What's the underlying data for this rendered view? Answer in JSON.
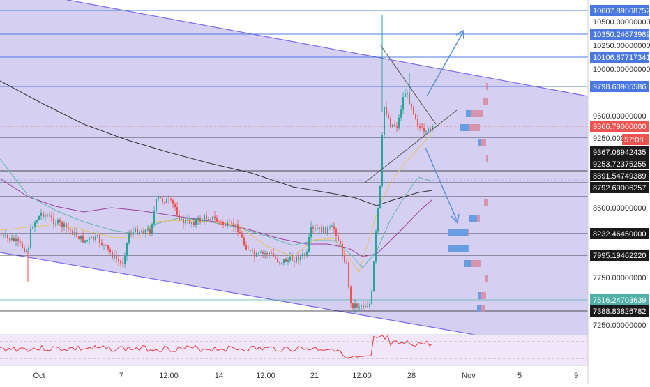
{
  "chart_data": {
    "type": "candlestick",
    "title": "",
    "xlabel": "",
    "ylabel": "",
    "ylim": [
      7100,
      10700
    ],
    "x_ticks": [
      "Oct",
      "7",
      "12:00",
      "14",
      "12:00",
      "21",
      "12:00",
      "28",
      "Nov",
      "5",
      "9"
    ],
    "y_ticks": [
      "10500.00000000",
      "10250.00000000",
      "10000.00000000",
      "9500.00000000",
      "9250.00000000",
      "8500.00000000",
      "7750.00000000",
      "7250.00000000"
    ],
    "price_levels": [
      {
        "label": "10607.89568752",
        "value": 10607.9,
        "kind": "blue"
      },
      {
        "label": "10350.24673989",
        "value": 10350.2,
        "kind": "blue"
      },
      {
        "label": "10106.87717341",
        "value": 10106.9,
        "kind": "blue"
      },
      {
        "label": "9798.60905586",
        "value": 9798.6,
        "kind": "blue"
      },
      {
        "label": "9367.08942435",
        "value": 9200.0,
        "kind": "dark"
      },
      {
        "label": "9253.72375255",
        "value": 8980.0,
        "kind": "dark"
      },
      {
        "label": "8891.54749389",
        "value": 8880.0,
        "kind": "dark"
      },
      {
        "label": "8792.69006257",
        "value": 8792.7,
        "kind": "dark"
      },
      {
        "label": "8232.46450000",
        "value": 8232.5,
        "kind": "dark"
      },
      {
        "label": "7995.19462220",
        "value": 7995.2,
        "kind": "dark"
      },
      {
        "label": "7516.24703639",
        "value": 7516.2,
        "kind": "teal"
      },
      {
        "label": "7388.83826782",
        "value": 7388.8,
        "kind": "dark"
      }
    ],
    "current_price": {
      "label": "9366.79000000",
      "value": 9366.8,
      "countdown": "57:08",
      "color": "#ef5350"
    },
    "colors": {
      "up": "#26a69a",
      "down": "#ef5350",
      "channel": "#7b68ee",
      "channel_fill": "#b3a9e8",
      "level_blue": "#4a78e0",
      "rsi": "#e53935"
    }
  }
}
